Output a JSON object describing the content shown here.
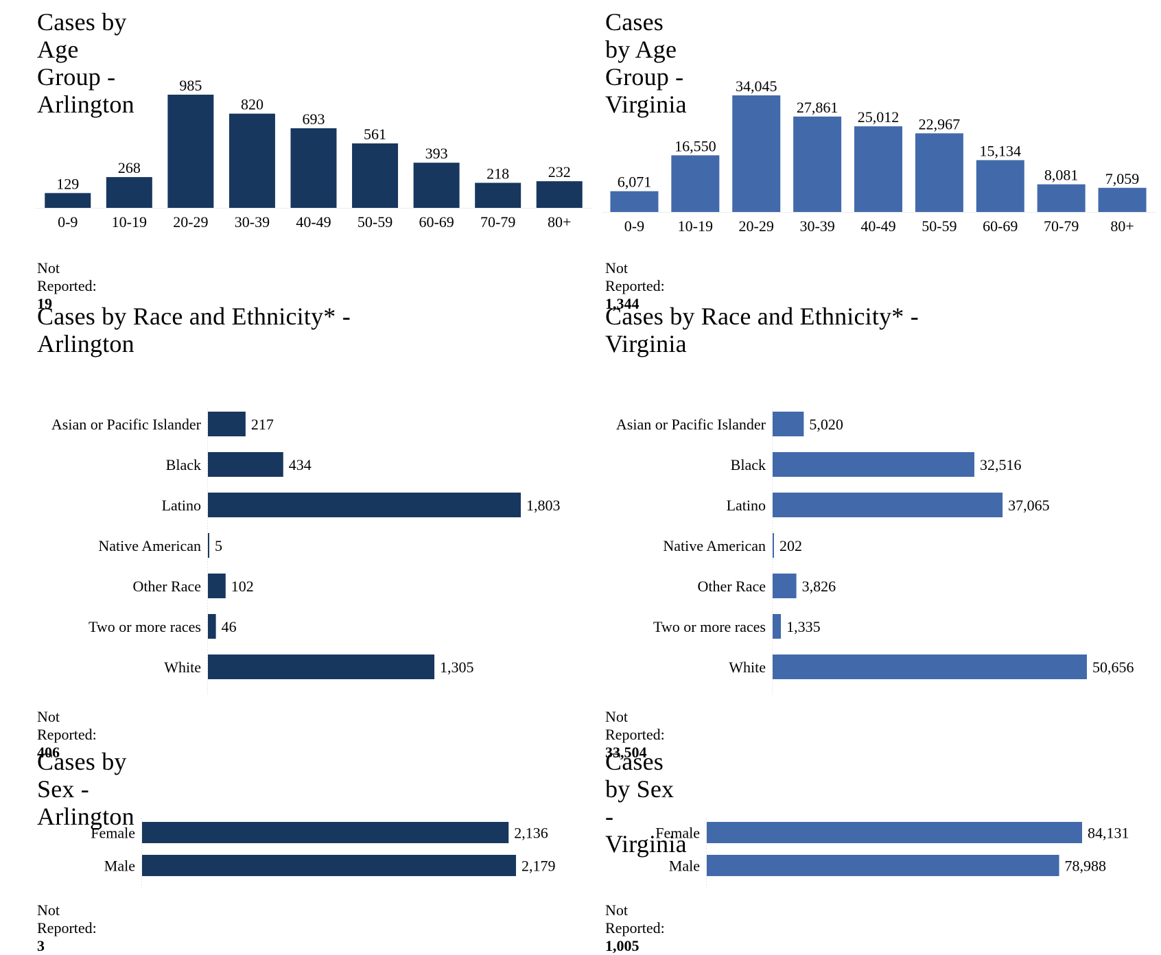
{
  "colors": {
    "arlington": "#17375e",
    "virginia": "#426aab"
  },
  "chart_data": [
    {
      "id": "age-arlington",
      "type": "bar",
      "title": "Cases by Age Group - Arlington",
      "categories": [
        "0-9",
        "10-19",
        "20-29",
        "30-39",
        "40-49",
        "50-59",
        "60-69",
        "70-79",
        "80+"
      ],
      "values": [
        129,
        268,
        985,
        820,
        693,
        561,
        393,
        218,
        232
      ],
      "value_labels": [
        "129",
        "268",
        "985",
        "820",
        "693",
        "561",
        "393",
        "218",
        "232"
      ],
      "not_reported_label": "Not Reported:",
      "not_reported_value": "19",
      "color": "#17375e"
    },
    {
      "id": "age-virginia",
      "type": "bar",
      "title": "Cases by Age Group - Virginia",
      "categories": [
        "0-9",
        "10-19",
        "20-29",
        "30-39",
        "40-49",
        "50-59",
        "60-69",
        "70-79",
        "80+"
      ],
      "values": [
        6071,
        16550,
        34045,
        27861,
        25012,
        22967,
        15134,
        8081,
        7059
      ],
      "value_labels": [
        "6,071",
        "16,550",
        "34,045",
        "27,861",
        "25,012",
        "22,967",
        "15,134",
        "8,081",
        "7,059"
      ],
      "not_reported_label": "Not Reported:",
      "not_reported_value": "1,344",
      "color": "#426aab"
    },
    {
      "id": "race-arlington",
      "type": "bar",
      "orientation": "horizontal",
      "title": "Cases by Race and Ethnicity* - Arlington",
      "categories": [
        "Asian or Pacific Islander",
        "Black",
        "Latino",
        "Native American",
        "Other Race",
        "Two or more races",
        "White"
      ],
      "values": [
        217,
        434,
        1803,
        5,
        102,
        46,
        1305
      ],
      "value_labels": [
        "217",
        "434",
        "1,803",
        "5",
        "102",
        "46",
        "1,305"
      ],
      "not_reported_label": "Not Reported:",
      "not_reported_value": "406",
      "color": "#17375e"
    },
    {
      "id": "race-virginia",
      "type": "bar",
      "orientation": "horizontal",
      "title": "Cases by Race and Ethnicity* - Virginia",
      "categories": [
        "Asian or Pacific Islander",
        "Black",
        "Latino",
        "Native American",
        "Other Race",
        "Two or more races",
        "White"
      ],
      "values": [
        5020,
        32516,
        37065,
        202,
        3826,
        1335,
        50656
      ],
      "value_labels": [
        "5,020",
        "32,516",
        "37,065",
        "202",
        "3,826",
        "1,335",
        "50,656"
      ],
      "not_reported_label": "Not Reported:",
      "not_reported_value": "33,504",
      "color": "#426aab"
    },
    {
      "id": "sex-arlington",
      "type": "bar",
      "orientation": "horizontal",
      "title": "Cases by Sex - Arlington",
      "categories": [
        "Female",
        "Male"
      ],
      "values": [
        2136,
        2179
      ],
      "value_labels": [
        "2,136",
        "2,179"
      ],
      "not_reported_label": "Not Reported:",
      "not_reported_value": "3",
      "color": "#17375e"
    },
    {
      "id": "sex-virginia",
      "type": "bar",
      "orientation": "horizontal",
      "title": "Cases by Sex - Virginia",
      "categories": [
        "Female",
        "Male"
      ],
      "values": [
        84131,
        78988
      ],
      "value_labels": [
        "84,131",
        "78,988"
      ],
      "not_reported_label": "Not Reported:",
      "not_reported_value": "1,005",
      "color": "#426aab"
    }
  ]
}
